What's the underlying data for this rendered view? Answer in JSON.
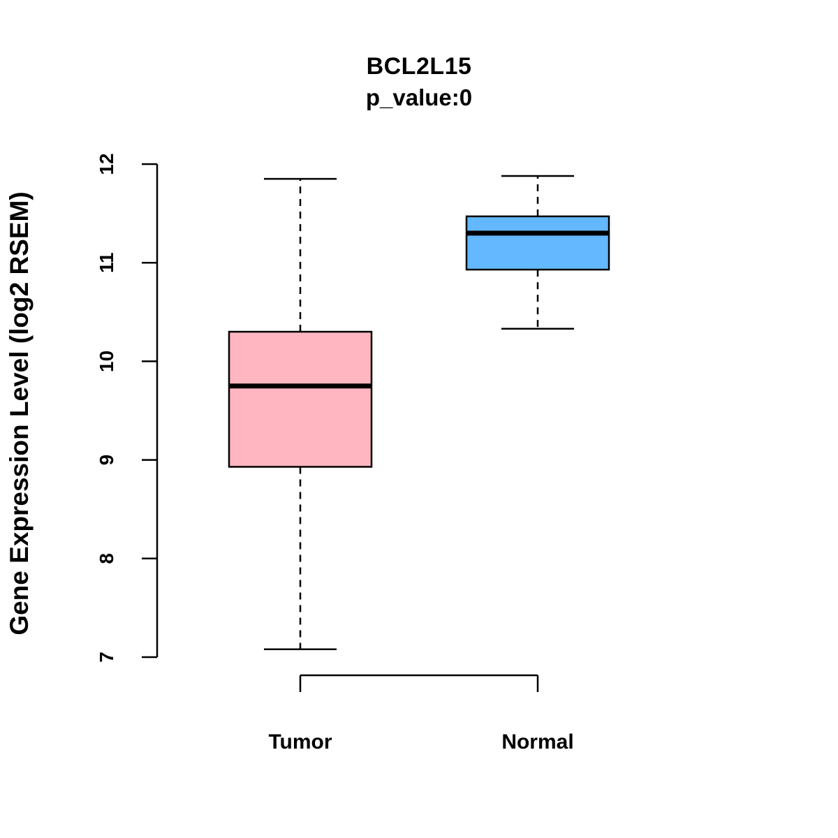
{
  "chart_data": {
    "type": "boxplot",
    "title": "BCL2L15",
    "subtitle": "p_value:0",
    "ylabel": "Gene Expression Level (log2 RSEM)",
    "xlabel": "",
    "ylim": [
      7,
      12
    ],
    "yticks": [
      7,
      8,
      9,
      10,
      11,
      12
    ],
    "categories": [
      "Tumor",
      "Normal"
    ],
    "legend": "none",
    "grid": false,
    "groups": [
      {
        "name": "Tumor",
        "color": "#FFB6C1",
        "whisker_low": 7.08,
        "q1": 8.93,
        "median": 9.75,
        "q3": 10.3,
        "whisker_high": 11.85
      },
      {
        "name": "Normal",
        "color": "#63B8FF",
        "whisker_low": 10.33,
        "q1": 10.93,
        "median": 11.3,
        "q3": 11.47,
        "whisker_high": 11.88
      }
    ]
  }
}
